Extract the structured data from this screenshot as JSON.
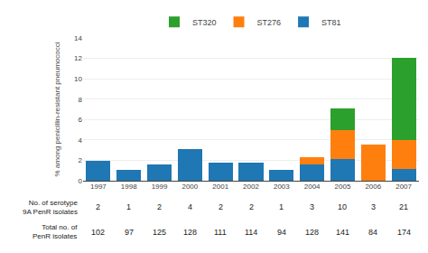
{
  "chart_data": {
    "type": "bar",
    "stacked": true,
    "categories": [
      "1997",
      "1998",
      "1999",
      "2000",
      "2001",
      "2002",
      "2003",
      "2004",
      "2005",
      "2006",
      "2007"
    ],
    "series": [
      {
        "name": "ST81",
        "values": [
          1.96,
          1.03,
          1.6,
          3.13,
          1.8,
          1.75,
          1.06,
          1.56,
          2.13,
          0.0,
          1.15
        ]
      },
      {
        "name": "ST276",
        "values": [
          0.0,
          0.0,
          0.0,
          0.0,
          0.0,
          0.0,
          0.0,
          0.78,
          2.84,
          3.57,
          2.87
        ]
      },
      {
        "name": "ST320",
        "values": [
          0.0,
          0.0,
          0.0,
          0.0,
          0.0,
          0.0,
          0.0,
          0.0,
          2.13,
          0.0,
          8.05
        ]
      }
    ],
    "y_label": "% among penicillin-resistant pneumococci",
    "ylim": [
      0,
      14
    ],
    "yticks": [
      0,
      2,
      4,
      6,
      8,
      10,
      12,
      14
    ],
    "grid": true,
    "legend": "top",
    "table": [
      {
        "label_lines": [
          "No. of serotype",
          "9A PenR isolates"
        ],
        "values": [
          2,
          1,
          2,
          4,
          2,
          2,
          1,
          3,
          10,
          3,
          21
        ]
      },
      {
        "label_lines": [
          "Total no. of",
          "PenR isolates"
        ],
        "values": [
          102,
          97,
          125,
          128,
          111,
          114,
          94,
          128,
          141,
          84,
          174
        ]
      }
    ]
  }
}
